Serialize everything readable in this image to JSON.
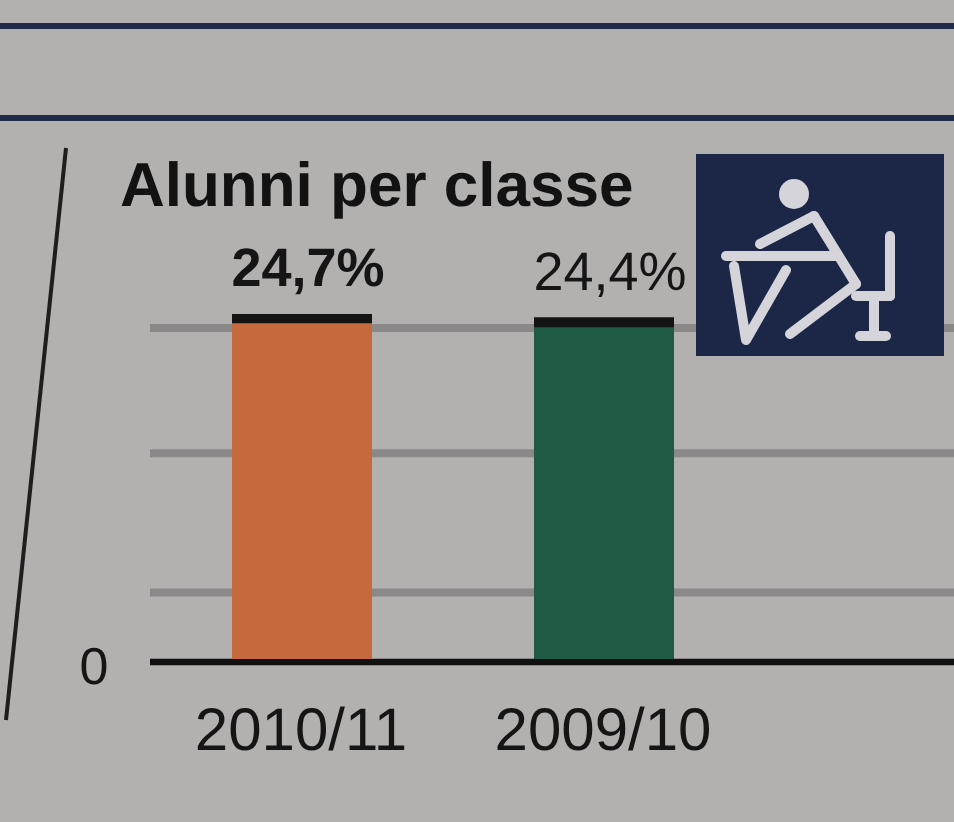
{
  "chart_data": {
    "type": "bar",
    "title": "Alunni per classe",
    "categories": [
      "2010/11",
      "2009/10"
    ],
    "values": [
      24.7,
      24.4
    ],
    "colors": [
      "#c66a3e",
      "#1f5a45"
    ],
    "value_labels": [
      "24,7%",
      "24,4%"
    ],
    "ylim": [
      0,
      25
    ],
    "yticks": [
      {
        "value": 0,
        "label": null
      },
      {
        "value": 5,
        "label": null
      },
      {
        "value": 15,
        "label": null
      },
      {
        "value": 24,
        "label": null
      }
    ],
    "grid": "y",
    "annotations": [
      "0"
    ]
  }
}
